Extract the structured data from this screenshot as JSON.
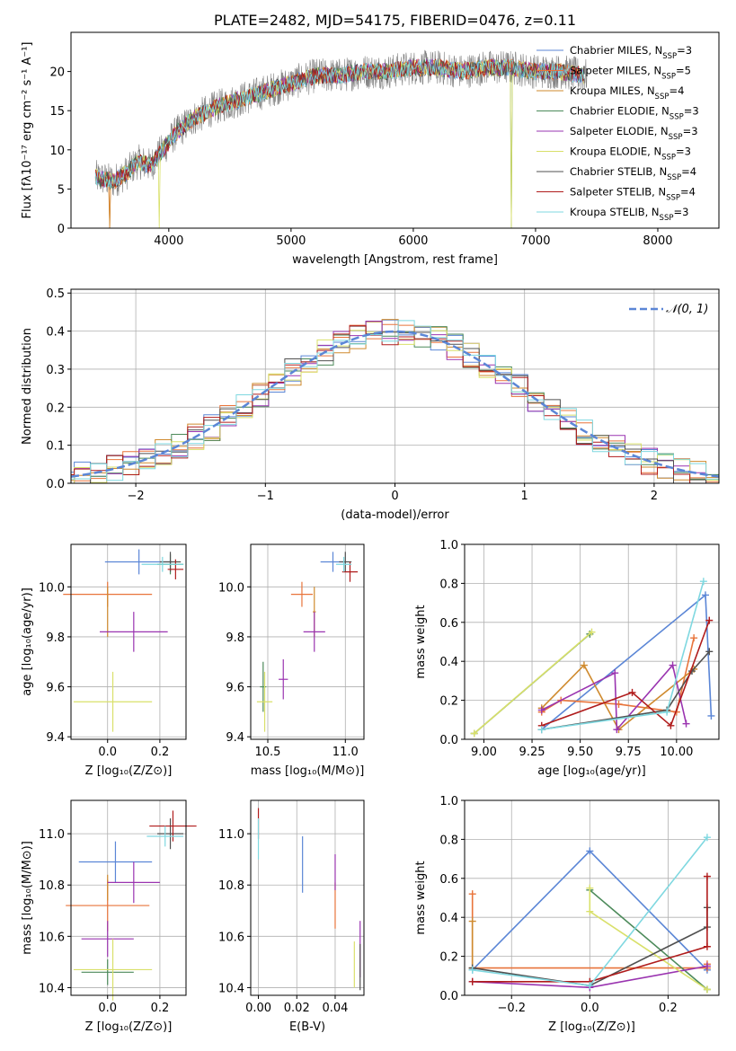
{
  "title": "PLATE=2482, MJD=54175, FIBERID=0476, z=0.11",
  "colors": {
    "Chabrier MILES": "#5b86d6",
    "Salpeter MILES": "#e8743b",
    "Kroupa MILES": "#cf8a2e",
    "Chabrier ELODIE": "#4c8a5a",
    "Salpeter ELODIE": "#9a34b0",
    "Kroupa ELODIE": "#d9e06a",
    "Chabrier STELIB": "#505050",
    "Salpeter STELIB": "#b01c1c",
    "Kroupa STELIB": "#7fd8e0",
    "data": "#808080",
    "gauss": "#5b86d6"
  },
  "chart_data": [
    {
      "type": "line",
      "id": "spectrum",
      "title": "PLATE=2482, MJD=54175, FIBERID=0476, z=0.11",
      "xlabel": "wavelength [Angstrom, rest frame]",
      "ylabel": "Flux [fλ10⁻¹⁷ erg cm⁻² s⁻¹ A⁻¹]",
      "xlim": [
        3200,
        8500
      ],
      "ylim": [
        0,
        25
      ],
      "xticks": [
        4000,
        5000,
        6000,
        7000,
        8000
      ],
      "yticks": [
        0,
        5,
        10,
        15,
        20
      ],
      "continuum": {
        "x": [
          3400,
          3550,
          3650,
          3750,
          3850,
          3950,
          4050,
          4200,
          4400,
          4600,
          4800,
          5000,
          5200,
          5400,
          5600,
          5800,
          6000,
          6200,
          6400,
          6600,
          6800,
          7000,
          7200,
          7400
        ],
        "y": [
          6.5,
          6,
          7,
          8.5,
          8,
          10,
          12,
          14,
          15.5,
          16.5,
          17.5,
          18.5,
          19.5,
          19.5,
          20,
          20,
          20.5,
          20.5,
          20,
          20.5,
          20.5,
          20,
          20,
          19.5
        ]
      },
      "legend": [
        {
          "label": "Chabrier MILES, N",
          "sub": "SSP",
          "suffix": "=3"
        },
        {
          "label": "Salpeter MILES, N",
          "sub": "SSP",
          "suffix": "=5"
        },
        {
          "label": "Kroupa MILES, N",
          "sub": "SSP",
          "suffix": "=4"
        },
        {
          "label": "Chabrier ELODIE, N",
          "sub": "SSP",
          "suffix": "=3"
        },
        {
          "label": "Salpeter ELODIE, N",
          "sub": "SSP",
          "suffix": "=3"
        },
        {
          "label": "Kroupa ELODIE, N",
          "sub": "SSP",
          "suffix": "=3"
        },
        {
          "label": "Chabrier STELIB, N",
          "sub": "SSP",
          "suffix": "=4"
        },
        {
          "label": "Salpeter STELIB, N",
          "sub": "SSP",
          "suffix": "=4"
        },
        {
          "label": "Kroupa STELIB, N",
          "sub": "SSP",
          "suffix": "=3"
        }
      ],
      "legend_position": "right"
    },
    {
      "type": "bar",
      "id": "residuals",
      "xlabel": "(data-model)/error",
      "ylabel": "Normed distribution",
      "xlim": [
        -2.5,
        2.5
      ],
      "ylim": [
        0,
        0.51
      ],
      "xticks": [
        -2,
        -1,
        0,
        1,
        2
      ],
      "xticklabels": [
        "−2",
        "−1",
        "0",
        "1",
        "2"
      ],
      "yticks": [
        0,
        0.1,
        0.2,
        0.3,
        0.4,
        0.5
      ],
      "yticklabels": [
        "0.0",
        "0.1",
        "0.2",
        "0.3",
        "0.4",
        "0.5"
      ],
      "legend": "𝒩(0, 1)",
      "legend_position": "top-right",
      "grid": true
    },
    {
      "type": "scatter",
      "id": "age_vs_Z",
      "xlabel": "Z [log₁₀(Z/Z⊙)]",
      "ylabel": "age  [log₁₀(age/yr)]",
      "xlim": [
        -0.14,
        0.3
      ],
      "ylim": [
        9.39,
        10.17
      ],
      "xticks": [
        0.0,
        0.2
      ],
      "xticklabels": [
        "0.0",
        "0.2"
      ],
      "yticks": [
        9.4,
        9.6,
        9.8,
        10.0
      ],
      "yticklabels": [
        "9.4",
        "9.6",
        "9.8",
        "10.0"
      ],
      "grid": true,
      "points": [
        {
          "model": "Chabrier MILES",
          "x": 0.12,
          "xerr": 0.13,
          "y": 10.1,
          "yerr": 0.05
        },
        {
          "model": "Salpeter MILES",
          "x": 0.0,
          "xerr": 0.17,
          "y": 9.97,
          "yerr": 0.05
        },
        {
          "model": "Kroupa MILES",
          "x": 0.0,
          "xerr": 0.0,
          "y": 9.9,
          "yerr": 0.1
        },
        {
          "model": "Chabrier ELODIE",
          "x": 0.24,
          "xerr": 0.05,
          "y": 10.09,
          "yerr": 0.04
        },
        {
          "model": "Salpeter ELODIE",
          "x": 0.1,
          "xerr": 0.13,
          "y": 9.82,
          "yerr": 0.08
        },
        {
          "model": "Kroupa ELODIE",
          "x": 0.02,
          "xerr": 0.15,
          "y": 9.54,
          "yerr": 0.12
        },
        {
          "model": "Chabrier STELIB",
          "x": 0.24,
          "xerr": 0.04,
          "y": 10.1,
          "yerr": 0.04
        },
        {
          "model": "Salpeter STELIB",
          "x": 0.26,
          "xerr": 0.03,
          "y": 10.07,
          "yerr": 0.04
        },
        {
          "model": "Kroupa STELIB",
          "x": 0.21,
          "xerr": 0.08,
          "y": 10.09,
          "yerr": 0.03
        }
      ]
    },
    {
      "type": "scatter",
      "id": "age_vs_mass",
      "xlabel": "mass [log₁₀(M/M⊙)]",
      "ylabel": "",
      "xlim": [
        10.39,
        11.12
      ],
      "ylim": [
        9.39,
        10.17
      ],
      "xticks": [
        10.5,
        11.0
      ],
      "xticklabels": [
        "10.5",
        "11.0"
      ],
      "yticks": [
        9.4,
        9.6,
        9.8,
        10.0
      ],
      "yticklabels": [
        "9.4",
        "9.6",
        "9.8",
        "10.0"
      ],
      "grid": true,
      "points": [
        {
          "model": "Chabrier MILES",
          "x": 10.92,
          "xerr": 0.08,
          "y": 10.1,
          "yerr": 0.04
        },
        {
          "model": "Salpeter MILES",
          "x": 10.72,
          "xerr": 0.07,
          "y": 9.97,
          "yerr": 0.05
        },
        {
          "model": "Kroupa MILES",
          "x": 10.8,
          "xerr": 0.01,
          "y": 9.9,
          "yerr": 0.1
        },
        {
          "model": "Chabrier ELODIE",
          "x": 10.47,
          "xerr": 0.02,
          "y": 9.6,
          "yerr": 0.1
        },
        {
          "model": "Salpeter ELODIE",
          "x": 10.6,
          "xerr": 0.03,
          "y": 9.63,
          "yerr": 0.08
        },
        {
          "model": "Kroupa ELODIE",
          "x": 10.48,
          "xerr": 0.05,
          "y": 9.54,
          "yerr": 0.12
        },
        {
          "model": "Chabrier STELIB",
          "x": 11.0,
          "xerr": 0.04,
          "y": 10.1,
          "yerr": 0.04
        },
        {
          "model": "Salpeter STELIB",
          "x": 11.03,
          "xerr": 0.05,
          "y": 10.06,
          "yerr": 0.04
        },
        {
          "model": "Kroupa STELIB",
          "x": 10.99,
          "xerr": 0.05,
          "y": 10.09,
          "yerr": 0.03
        },
        {
          "model": "Salpeter ELODIE",
          "x": 10.8,
          "xerr": 0.07,
          "y": 9.82,
          "yerr": 0.08
        }
      ]
    },
    {
      "type": "line",
      "id": "weight_vs_age",
      "xlabel": "age  [log₁₀(age/yr)]",
      "ylabel": "mass weight",
      "xlim": [
        8.9,
        10.22
      ],
      "ylim": [
        0,
        1.0
      ],
      "xticks": [
        9.0,
        9.25,
        9.5,
        9.75,
        10.0
      ],
      "xticklabels": [
        "9.00",
        "9.25",
        "9.50",
        "9.75",
        "10.00"
      ],
      "yticks": [
        0,
        0.2,
        0.4,
        0.6,
        0.8,
        1.0
      ],
      "yticklabels": [
        "0.0",
        "0.2",
        "0.4",
        "0.6",
        "0.8",
        "1.0"
      ],
      "grid": true,
      "series": [
        {
          "model": "Chabrier MILES",
          "x": [
            9.3,
            10.15,
            10.18
          ],
          "y": [
            0.05,
            0.74,
            0.12
          ]
        },
        {
          "model": "Salpeter MILES",
          "x": [
            9.3,
            9.4,
            9.7,
            10.0,
            10.09
          ],
          "y": [
            0.14,
            0.2,
            0.18,
            0.14,
            0.52
          ]
        },
        {
          "model": "Kroupa MILES",
          "x": [
            9.3,
            9.52,
            9.7,
            10.09
          ],
          "y": [
            0.16,
            0.38,
            0.05,
            0.36
          ]
        },
        {
          "model": "Chabrier ELODIE",
          "x": [
            8.95,
            9.55
          ],
          "y": [
            0.03,
            0.54
          ]
        },
        {
          "model": "Salpeter ELODIE",
          "x": [
            9.3,
            9.68,
            9.69,
            9.98,
            10.05
          ],
          "y": [
            0.15,
            0.34,
            0.05,
            0.38,
            0.08
          ]
        },
        {
          "model": "Kroupa ELODIE",
          "x": [
            8.95,
            9.56
          ],
          "y": [
            0.03,
            0.55
          ]
        },
        {
          "model": "Chabrier STELIB",
          "x": [
            9.3,
            9.95,
            10.08,
            10.17
          ],
          "y": [
            0.05,
            0.15,
            0.35,
            0.45
          ]
        },
        {
          "model": "Salpeter STELIB",
          "x": [
            9.3,
            9.77,
            9.97,
            10.17
          ],
          "y": [
            0.07,
            0.24,
            0.07,
            0.61
          ]
        },
        {
          "model": "Kroupa STELIB",
          "x": [
            9.3,
            9.95,
            10.14
          ],
          "y": [
            0.05,
            0.14,
            0.81
          ]
        }
      ]
    },
    {
      "type": "scatter",
      "id": "mass_vs_Z",
      "xlabel": "Z [log₁₀(Z/Z⊙)]",
      "ylabel": "mass [log₁₀(M/M⊙)]",
      "xlim": [
        -0.14,
        0.3
      ],
      "ylim": [
        10.37,
        11.13
      ],
      "xticks": [
        0.0,
        0.2
      ],
      "xticklabels": [
        "0.0",
        "0.2"
      ],
      "yticks": [
        10.4,
        10.6,
        10.8,
        11.0
      ],
      "yticklabels": [
        "10.4",
        "10.6",
        "10.8",
        "11.0"
      ],
      "grid": true,
      "points": [
        {
          "model": "Chabrier MILES",
          "x": 0.03,
          "xerr": 0.14,
          "y": 10.89,
          "yerr": 0.08
        },
        {
          "model": "Salpeter MILES",
          "x": 0.0,
          "xerr": 0.16,
          "y": 10.72,
          "yerr": 0.1
        },
        {
          "model": "Kroupa MILES",
          "x": 0.0,
          "xerr": 0.0,
          "y": 10.79,
          "yerr": 0.05
        },
        {
          "model": "Chabrier ELODIE",
          "x": 0.0,
          "xerr": 0.1,
          "y": 10.46,
          "yerr": 0.05
        },
        {
          "model": "Salpeter ELODIE",
          "x": 0.0,
          "xerr": 0.1,
          "y": 10.59,
          "yerr": 0.07
        },
        {
          "model": "Kroupa ELODIE",
          "x": 0.02,
          "xerr": 0.15,
          "y": 10.47,
          "yerr": 0.12
        },
        {
          "model": "Chabrier STELIB",
          "x": 0.24,
          "xerr": 0.05,
          "y": 11.0,
          "yerr": 0.06
        },
        {
          "model": "Salpeter STELIB",
          "x": 0.25,
          "xerr": 0.09,
          "y": 11.03,
          "yerr": 0.06
        },
        {
          "model": "Kroupa STELIB",
          "x": 0.22,
          "xerr": 0.07,
          "y": 10.99,
          "yerr": 0.04
        },
        {
          "model": "Salpeter ELODIE",
          "x": 0.1,
          "xerr": 0.1,
          "y": 10.81,
          "yerr": 0.08
        }
      ]
    },
    {
      "type": "scatter",
      "id": "mass_vs_ebv",
      "xlabel": "E(B-V)",
      "ylabel": "",
      "xlim": [
        -0.004,
        0.055
      ],
      "ylim": [
        10.37,
        11.13
      ],
      "xticks": [
        0.0,
        0.02,
        0.04
      ],
      "xticklabels": [
        "0.00",
        "0.02",
        "0.04"
      ],
      "yticks": [
        10.4,
        10.6,
        10.8,
        11.0
      ],
      "yticklabels": [
        "10.4",
        "10.6",
        "10.8",
        "11.0"
      ],
      "grid": true,
      "points": [
        {
          "model": "Chabrier MILES",
          "x": 0.023,
          "xerr": 0,
          "y": 10.88,
          "yerr": 0.11
        },
        {
          "model": "Salpeter MILES",
          "x": 0.04,
          "xerr": 0,
          "y": 10.72,
          "yerr": 0.09
        },
        {
          "model": "Salpeter ELODIE",
          "x": 0.04,
          "xerr": 0,
          "y": 10.85,
          "yerr": 0.07
        },
        {
          "model": "Salpeter ELODIE",
          "x": 0.053,
          "xerr": 0,
          "y": 10.55,
          "yerr": 0.11
        },
        {
          "model": "Kroupa ELODIE",
          "x": 0.05,
          "xerr": 0,
          "y": 10.49,
          "yerr": 0.09
        },
        {
          "model": "Chabrier STELIB",
          "x": 0.053,
          "xerr": 0,
          "y": 10.48,
          "yerr": 0.09
        },
        {
          "model": "Salpeter STELIB",
          "x": 0.0,
          "xerr": 0,
          "y": 11.04,
          "yerr": 0.06
        },
        {
          "model": "Kroupa STELIB",
          "x": 0.0,
          "xerr": 0,
          "y": 10.98,
          "yerr": 0.08
        }
      ]
    },
    {
      "type": "line",
      "id": "weight_vs_Z",
      "xlabel": "Z [log₁₀(Z/Z⊙)]",
      "ylabel": "mass weight",
      "xlim": [
        -0.32,
        0.33
      ],
      "ylim": [
        0,
        1.0
      ],
      "xticks": [
        -0.2,
        0.0,
        0.2
      ],
      "xticklabels": [
        "−0.2",
        "0.0",
        "0.2"
      ],
      "yticks": [
        0,
        0.2,
        0.4,
        0.6,
        0.8,
        1.0
      ],
      "yticklabels": [
        "0.0",
        "0.2",
        "0.4",
        "0.6",
        "0.8",
        "1.0"
      ],
      "grid": true,
      "series": [
        {
          "model": "Chabrier MILES",
          "x": [
            -0.3,
            0.0,
            0.3
          ],
          "y": [
            0.13,
            0.74,
            0.13
          ]
        },
        {
          "model": "Salpeter MILES",
          "x": [
            -0.3,
            -0.3,
            0.3,
            0.3
          ],
          "y": [
            0.52,
            0.14,
            0.14,
            0.16
          ]
        },
        {
          "model": "Kroupa MILES",
          "x": [
            -0.3,
            -0.3
          ],
          "y": [
            0.38,
            0.14
          ]
        },
        {
          "model": "Chabrier ELODIE",
          "x": [
            0.0,
            0.3
          ],
          "y": [
            0.54,
            0.03
          ]
        },
        {
          "model": "Salpeter ELODIE",
          "x": [
            -0.3,
            0.0,
            0.3
          ],
          "y": [
            0.07,
            0.04,
            0.15
          ]
        },
        {
          "model": "Kroupa ELODIE",
          "x": [
            0.0,
            0.0,
            0.3
          ],
          "y": [
            0.55,
            0.43,
            0.03
          ]
        },
        {
          "model": "Chabrier STELIB",
          "x": [
            -0.3,
            0.0,
            0.3,
            0.3
          ],
          "y": [
            0.14,
            0.05,
            0.35,
            0.45
          ]
        },
        {
          "model": "Salpeter STELIB",
          "x": [
            -0.3,
            0.0,
            0.3,
            0.3
          ],
          "y": [
            0.07,
            0.07,
            0.25,
            0.61
          ]
        },
        {
          "model": "Kroupa STELIB",
          "x": [
            -0.3,
            0.0,
            0.3
          ],
          "y": [
            0.13,
            0.05,
            0.81
          ]
        }
      ]
    }
  ]
}
